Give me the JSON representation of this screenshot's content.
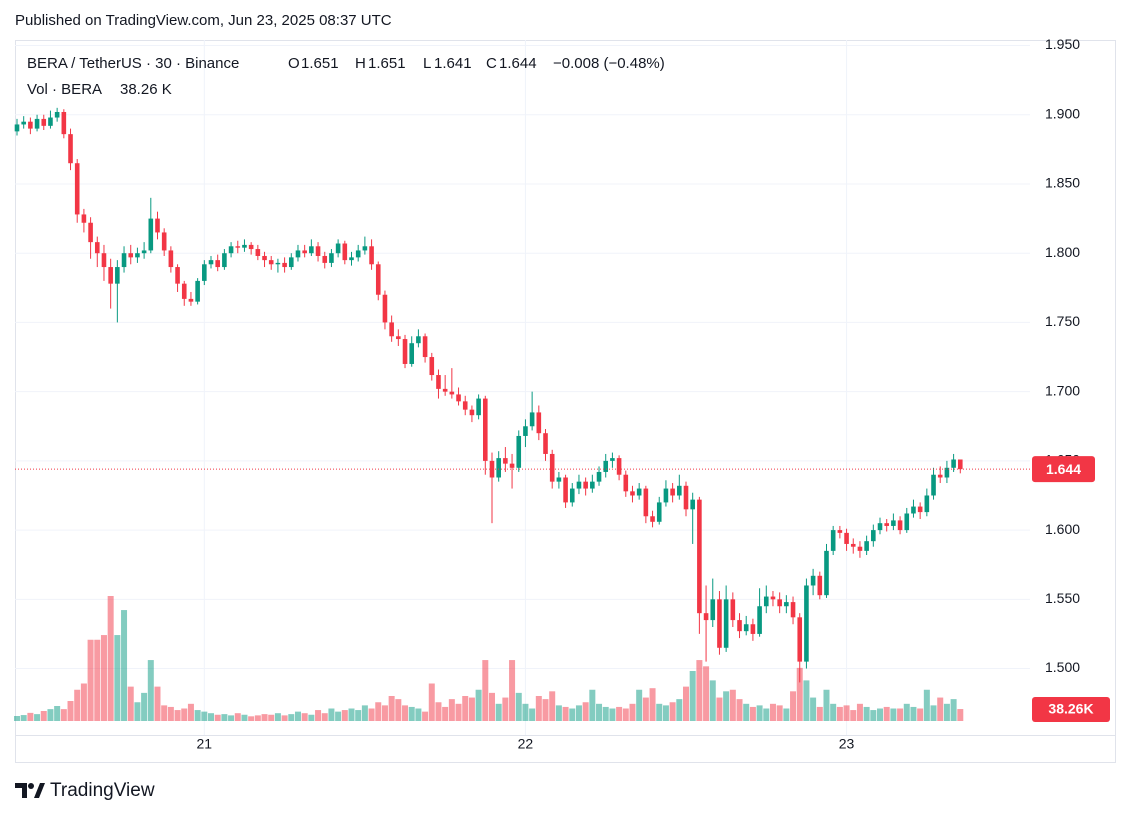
{
  "header": {
    "published": "Published on TradingView.com, Jun 23, 2025 08:37 UTC"
  },
  "footer": {
    "brand": "TradingView"
  },
  "chart_data": {
    "type": "candlestick",
    "legend": {
      "symbol": "BERA / TetherUS · 30 · Binance",
      "open_label": "O",
      "high_label": "H",
      "low_label": "L",
      "close_label": "C",
      "change": "−0.008 (−0.48%)",
      "volume_name": "Vol · BERA",
      "volume_label": "38.26 K"
    },
    "volume_badge_label": "38.26K",
    "up_color": "#089981",
    "down_color": "#f23645",
    "grid": true,
    "ylim": [
      1.452,
      1.954
    ],
    "yticks": [
      {
        "value": 1.5,
        "label": "1.500"
      },
      {
        "value": 1.55,
        "label": "1.550"
      },
      {
        "value": 1.6,
        "label": "1.600"
      },
      {
        "value": 1.65,
        "label": "1.650"
      },
      {
        "value": 1.7,
        "label": "1.700"
      },
      {
        "value": 1.75,
        "label": "1.750"
      },
      {
        "value": 1.8,
        "label": "1.800"
      },
      {
        "value": 1.85,
        "label": "1.850"
      },
      {
        "value": 1.9,
        "label": "1.900"
      },
      {
        "value": 1.95,
        "label": "1.950"
      }
    ],
    "categories": [
      null,
      null,
      null,
      null,
      null,
      null,
      null,
      null,
      null,
      null,
      null,
      null,
      null,
      null,
      null,
      null,
      null,
      null,
      null,
      null,
      null,
      null,
      null,
      null,
      null,
      null,
      null,
      null,
      "21",
      null,
      null,
      null,
      null,
      null,
      null,
      null,
      null,
      null,
      null,
      null,
      null,
      null,
      null,
      null,
      null,
      null,
      null,
      null,
      null,
      null,
      null,
      null,
      null,
      null,
      null,
      null,
      null,
      null,
      null,
      null,
      null,
      null,
      null,
      null,
      null,
      null,
      null,
      null,
      null,
      null,
      null,
      null,
      null,
      null,
      null,
      null,
      "22",
      null,
      null,
      null,
      null,
      null,
      null,
      null,
      null,
      null,
      null,
      null,
      null,
      null,
      null,
      null,
      null,
      null,
      null,
      null,
      null,
      null,
      null,
      null,
      null,
      null,
      null,
      null,
      null,
      null,
      null,
      null,
      null,
      null,
      null,
      null,
      null,
      null,
      null,
      null,
      null,
      null,
      null,
      null,
      null,
      null,
      null,
      null,
      "23",
      null,
      null,
      null,
      null,
      null,
      null,
      null,
      null,
      null,
      null,
      null,
      null,
      null,
      null,
      null,
      null,
      null
    ],
    "open": [
      1.888,
      1.893,
      1.895,
      1.89,
      1.897,
      1.892,
      1.898,
      1.902,
      1.886,
      1.865,
      1.828,
      1.822,
      1.808,
      1.8,
      1.79,
      1.778,
      1.79,
      1.8,
      1.797,
      1.8,
      1.802,
      1.825,
      1.815,
      1.802,
      1.79,
      1.778,
      1.767,
      1.765,
      1.78,
      1.792,
      1.795,
      1.79,
      1.8,
      1.805,
      1.804,
      1.806,
      1.803,
      1.798,
      1.795,
      1.792,
      1.793,
      1.79,
      1.797,
      1.802,
      1.8,
      1.805,
      1.798,
      1.793,
      1.8,
      1.807,
      1.795,
      1.797,
      1.802,
      1.805,
      1.792,
      1.77,
      1.75,
      1.74,
      1.738,
      1.72,
      1.735,
      1.74,
      1.725,
      1.712,
      1.702,
      1.7,
      1.698,
      1.693,
      1.687,
      1.683,
      1.695,
      1.65,
      1.638,
      1.652,
      1.648,
      1.645,
      1.668,
      1.675,
      1.685,
      1.67,
      1.655,
      1.635,
      1.638,
      1.62,
      1.63,
      1.635,
      1.63,
      1.635,
      1.642,
      1.65,
      1.652,
      1.64,
      1.628,
      1.625,
      1.63,
      1.61,
      1.606,
      1.62,
      1.63,
      1.625,
      1.632,
      1.615,
      1.622,
      1.54,
      1.535,
      1.55,
      1.515,
      1.55,
      1.535,
      1.527,
      1.532,
      1.525,
      1.545,
      1.552,
      1.55,
      1.545,
      1.548,
      1.537,
      1.505,
      1.56,
      1.567,
      1.553,
      1.585,
      1.6,
      1.598,
      1.59,
      1.588,
      1.585,
      1.592,
      1.6,
      1.605,
      1.603,
      1.607,
      1.6,
      1.612,
      1.617,
      1.613,
      1.625,
      1.64,
      1.638,
      1.645,
      1.651
    ],
    "high": [
      1.897,
      1.899,
      1.898,
      1.9,
      1.9,
      1.903,
      1.905,
      1.904,
      1.89,
      1.868,
      1.832,
      1.826,
      1.812,
      1.806,
      1.796,
      1.795,
      1.805,
      1.806,
      1.804,
      1.808,
      1.84,
      1.83,
      1.818,
      1.805,
      1.792,
      1.78,
      1.772,
      1.782,
      1.795,
      1.798,
      1.799,
      1.803,
      1.808,
      1.809,
      1.81,
      1.808,
      1.806,
      1.801,
      1.798,
      1.796,
      1.797,
      1.8,
      1.806,
      1.806,
      1.81,
      1.808,
      1.801,
      1.803,
      1.81,
      1.809,
      1.801,
      1.806,
      1.812,
      1.81,
      1.794,
      1.773,
      1.755,
      1.745,
      1.741,
      1.74,
      1.745,
      1.742,
      1.728,
      1.716,
      1.712,
      1.717,
      1.703,
      1.697,
      1.69,
      1.698,
      1.697,
      1.656,
      1.657,
      1.66,
      1.655,
      1.672,
      1.68,
      1.7,
      1.69,
      1.673,
      1.658,
      1.642,
      1.64,
      1.634,
      1.64,
      1.638,
      1.64,
      1.646,
      1.655,
      1.656,
      1.654,
      1.643,
      1.632,
      1.634,
      1.632,
      1.614,
      1.624,
      1.636,
      1.634,
      1.64,
      1.635,
      1.627,
      1.624,
      1.56,
      1.565,
      1.556,
      1.56,
      1.555,
      1.54,
      1.538,
      1.536,
      1.558,
      1.56,
      1.556,
      1.555,
      1.553,
      1.552,
      1.54,
      1.565,
      1.572,
      1.57,
      1.59,
      1.603,
      1.603,
      1.601,
      1.594,
      1.592,
      1.596,
      1.604,
      1.609,
      1.608,
      1.612,
      1.61,
      1.616,
      1.622,
      1.62,
      1.63,
      1.645,
      1.646,
      1.65,
      1.655,
      1.651
    ],
    "low": [
      1.885,
      1.89,
      1.886,
      1.888,
      1.889,
      1.89,
      1.895,
      1.883,
      1.86,
      1.822,
      1.815,
      1.796,
      1.79,
      1.78,
      1.76,
      1.75,
      1.786,
      1.792,
      1.793,
      1.796,
      1.8,
      1.81,
      1.798,
      1.786,
      1.772,
      1.762,
      1.762,
      1.763,
      1.777,
      1.789,
      1.787,
      1.788,
      1.797,
      1.8,
      1.801,
      1.799,
      1.795,
      1.79,
      1.788,
      1.786,
      1.786,
      1.788,
      1.794,
      1.797,
      1.798,
      1.794,
      1.789,
      1.79,
      1.797,
      1.792,
      1.791,
      1.794,
      1.799,
      1.788,
      1.766,
      1.745,
      1.736,
      1.733,
      1.717,
      1.718,
      1.732,
      1.721,
      1.708,
      1.695,
      1.697,
      1.695,
      1.69,
      1.683,
      1.678,
      1.68,
      1.64,
      1.605,
      1.635,
      1.642,
      1.63,
      1.642,
      1.66,
      1.672,
      1.665,
      1.65,
      1.63,
      1.63,
      1.616,
      1.617,
      1.626,
      1.625,
      1.627,
      1.632,
      1.638,
      1.645,
      1.636,
      1.624,
      1.62,
      1.622,
      1.605,
      1.602,
      1.604,
      1.617,
      1.62,
      1.622,
      1.61,
      1.59,
      1.525,
      1.505,
      1.53,
      1.51,
      1.512,
      1.53,
      1.522,
      1.524,
      1.52,
      1.523,
      1.54,
      1.545,
      1.54,
      1.54,
      1.532,
      1.49,
      1.5,
      1.553,
      1.55,
      1.551,
      1.582,
      1.594,
      1.585,
      1.583,
      1.58,
      1.582,
      1.588,
      1.597,
      1.599,
      1.6,
      1.597,
      1.598,
      1.609,
      1.608,
      1.61,
      1.622,
      1.634,
      1.634,
      1.642,
      1.641
    ],
    "close": [
      1.893,
      1.895,
      1.89,
      1.897,
      1.892,
      1.898,
      1.902,
      1.886,
      1.865,
      1.828,
      1.822,
      1.808,
      1.8,
      1.79,
      1.778,
      1.79,
      1.8,
      1.797,
      1.8,
      1.802,
      1.825,
      1.815,
      1.802,
      1.79,
      1.778,
      1.767,
      1.765,
      1.78,
      1.792,
      1.795,
      1.79,
      1.8,
      1.805,
      1.804,
      1.806,
      1.803,
      1.798,
      1.795,
      1.792,
      1.793,
      1.79,
      1.797,
      1.802,
      1.8,
      1.805,
      1.798,
      1.793,
      1.8,
      1.807,
      1.795,
      1.797,
      1.802,
      1.805,
      1.792,
      1.77,
      1.75,
      1.74,
      1.738,
      1.72,
      1.735,
      1.74,
      1.725,
      1.712,
      1.702,
      1.7,
      1.698,
      1.693,
      1.687,
      1.683,
      1.695,
      1.65,
      1.638,
      1.652,
      1.648,
      1.645,
      1.668,
      1.675,
      1.685,
      1.67,
      1.655,
      1.635,
      1.638,
      1.62,
      1.63,
      1.635,
      1.63,
      1.635,
      1.642,
      1.65,
      1.652,
      1.64,
      1.628,
      1.625,
      1.63,
      1.61,
      1.606,
      1.62,
      1.63,
      1.625,
      1.632,
      1.615,
      1.622,
      1.54,
      1.535,
      1.55,
      1.515,
      1.55,
      1.535,
      1.527,
      1.532,
      1.525,
      1.545,
      1.552,
      1.55,
      1.545,
      1.548,
      1.537,
      1.505,
      1.56,
      1.567,
      1.553,
      1.585,
      1.6,
      1.598,
      1.59,
      1.588,
      1.585,
      1.592,
      1.6,
      1.605,
      1.603,
      1.607,
      1.6,
      1.612,
      1.617,
      1.613,
      1.625,
      1.64,
      1.638,
      1.645,
      1.651,
      1.644
    ],
    "volume": [
      16,
      19,
      26,
      22,
      32,
      38,
      48,
      38,
      64,
      100,
      120,
      260,
      260,
      275,
      400,
      275,
      355,
      110,
      60,
      90,
      195,
      110,
      50,
      45,
      35,
      40,
      55,
      35,
      30,
      25,
      20,
      22,
      18,
      25,
      20,
      15,
      18,
      22,
      20,
      25,
      18,
      22,
      30,
      25,
      20,
      35,
      25,
      40,
      30,
      35,
      40,
      35,
      50,
      40,
      60,
      50,
      80,
      70,
      50,
      45,
      40,
      30,
      120,
      60,
      45,
      70,
      55,
      80,
      75,
      100,
      195,
      90,
      55,
      75,
      195,
      90,
      55,
      40,
      80,
      70,
      95,
      50,
      45,
      40,
      50,
      60,
      100,
      55,
      45,
      40,
      45,
      40,
      55,
      100,
      75,
      105,
      55,
      50,
      60,
      70,
      110,
      160,
      195,
      175,
      130,
      75,
      95,
      100,
      70,
      55,
      45,
      50,
      40,
      55,
      50,
      40,
      95,
      170,
      130,
      75,
      45,
      100,
      55,
      45,
      50,
      35,
      55,
      45,
      35,
      40,
      45,
      40,
      40,
      55,
      45,
      40,
      100,
      50,
      75,
      55,
      70,
      38.26
    ]
  }
}
